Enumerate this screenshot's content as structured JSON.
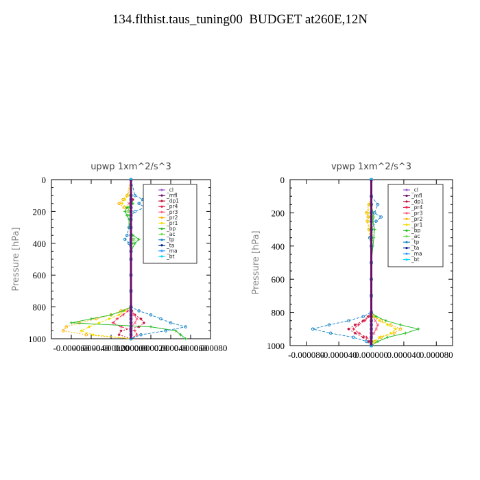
{
  "title": "134.flthist.taus_tuning00  BUDGET at260E,12N",
  "chart_data": [
    {
      "type": "line",
      "title": "upwp   1xm^2/s^3",
      "ylabel": "Pressure [hPa]",
      "xlabel": "",
      "xlim": [
        -8e-05,
        8e-05
      ],
      "ylim": [
        1000,
        0
      ],
      "xticks": [
        "-0.000060",
        "-0.000040",
        "-0.000020",
        "0.000000",
        "0.000020",
        "0.000040",
        "0.000060",
        "0.000080"
      ],
      "yticks": [
        "0",
        "200",
        "400",
        "600",
        "800",
        "1000"
      ],
      "legend_position": "top-right",
      "y": [
        0,
        100,
        125,
        150,
        175,
        200,
        225,
        250,
        300,
        350,
        375,
        400,
        450,
        500,
        600,
        700,
        800,
        825,
        850,
        875,
        900,
        925,
        950,
        975,
        1000
      ],
      "series": [
        {
          "name": "_cl",
          "color": "#9b59d0",
          "values": [
            0,
            0,
            0,
            0,
            0,
            0,
            0,
            0,
            0,
            0,
            0,
            0,
            0,
            0,
            0,
            0,
            0,
            0,
            0,
            0,
            0,
            0,
            0,
            0,
            0
          ]
        },
        {
          "name": "_mfl",
          "color": "#6a0d6a",
          "values": [
            0,
            0,
            0,
            0,
            0,
            0,
            0,
            0,
            0,
            0,
            0,
            0,
            0,
            0,
            0,
            0,
            0,
            0,
            0,
            0,
            0,
            0,
            0,
            0,
            0
          ]
        },
        {
          "name": "_dp1",
          "color": "#c0143c",
          "values": [
            0,
            0,
            2e-06,
            1e-06,
            0,
            0,
            0,
            0,
            0,
            0,
            0,
            0,
            0,
            0,
            0,
            0,
            0,
            1e-06,
            4e-06,
            1e-05,
            1.3e-05,
            8e-06,
            -1e-05,
            -1.2e-05,
            0
          ]
        },
        {
          "name": "_pr4",
          "color": "#e8204a",
          "values": [
            0,
            0,
            0,
            0,
            0,
            0,
            0,
            0,
            0,
            0,
            0,
            0,
            0,
            0,
            0,
            0,
            0,
            -3e-06,
            -8e-06,
            -1.4e-05,
            -1.8e-05,
            -1e-05,
            4e-06,
            6e-06,
            0
          ]
        },
        {
          "name": "_pr3",
          "color": "#ff5a78",
          "values": [
            0,
            0,
            0,
            -2e-06,
            0,
            0,
            0,
            0,
            0,
            0,
            0,
            0,
            0,
            0,
            0,
            0,
            0,
            0,
            3e-06,
            6e-06,
            4e-06,
            0,
            0,
            0,
            0
          ]
        },
        {
          "name": "_pr2",
          "color": "#ffb000",
          "values": [
            0,
            -4e-06,
            -8e-06,
            -1.2e-05,
            -7e-06,
            -2e-06,
            0,
            0,
            0,
            0,
            0,
            0,
            0,
            0,
            0,
            0,
            0,
            -1e-05,
            -2e-05,
            -3.5e-05,
            -5.2e-05,
            -6.5e-05,
            -6.8e-05,
            -4.5e-05,
            0
          ]
        },
        {
          "name": "_pr1",
          "color": "#f0e000",
          "values": [
            0,
            -3e-06,
            -6e-06,
            -9e-06,
            -4e-06,
            0,
            0,
            0,
            0,
            0,
            0,
            0,
            0,
            0,
            0,
            0,
            0,
            -6e-06,
            -1.2e-05,
            -2.2e-05,
            -3.2e-05,
            -4.2e-05,
            -5e-05,
            -3.8e-05,
            0
          ]
        },
        {
          "name": "_bp",
          "color": "#22bb22",
          "values": [
            0,
            0,
            0,
            2e-06,
            -4e-06,
            -6e-06,
            -4e-06,
            -2e-06,
            -2e-06,
            2e-06,
            8e-06,
            4e-06,
            0,
            0,
            0,
            0,
            0,
            -8e-06,
            -2e-05,
            -4e-05,
            -6e-05,
            2e-05,
            4.5e-05,
            5e-05,
            5.5e-05
          ]
        },
        {
          "name": "_ac",
          "color": "#66dd44",
          "values": [
            0,
            0,
            0,
            1e-06,
            -2e-06,
            -3e-06,
            -2e-06,
            0,
            0,
            1e-06,
            3e-06,
            2e-06,
            0,
            0,
            0,
            0,
            0,
            0,
            0,
            0,
            0,
            0,
            0,
            0,
            0
          ]
        },
        {
          "name": "_tp",
          "color": "#1e88c8",
          "values": [
            0,
            4e-06,
            1.2e-05,
            8e-06,
            1.4e-05,
            4e-06,
            0,
            0,
            -2e-06,
            -4e-06,
            -6e-06,
            -2e-06,
            0,
            0,
            0,
            0,
            0,
            8e-06,
            2e-05,
            3e-05,
            4e-05,
            5.5e-05,
            3.5e-05,
            1e-05,
            0
          ]
        },
        {
          "name": "_ta",
          "color": "#002288",
          "values": [
            0,
            0,
            0,
            0,
            0,
            0,
            0,
            0,
            0,
            0,
            0,
            0,
            0,
            0,
            0,
            0,
            0,
            0,
            0,
            0,
            0,
            0,
            0,
            0,
            0
          ]
        },
        {
          "name": "_ma",
          "color": "#3399ff",
          "values": [
            0,
            0,
            0,
            0,
            0,
            0,
            0,
            0,
            0,
            0,
            0,
            0,
            0,
            0,
            0,
            0,
            0,
            0,
            0,
            0,
            0,
            0,
            0,
            0,
            0
          ]
        },
        {
          "name": "_bt",
          "color": "#00d8f0",
          "values": [
            0,
            0,
            0,
            0,
            0,
            0,
            0,
            0,
            0,
            0,
            0,
            0,
            0,
            0,
            0,
            0,
            0,
            0,
            0,
            0,
            0,
            0,
            0,
            0,
            0
          ]
        }
      ]
    },
    {
      "type": "line",
      "title": "vpwp   1xm^2/s^3",
      "ylabel": "Pressure [hPa]",
      "xlabel": "",
      "xlim": [
        -0.0001,
        0.0001
      ],
      "ylim": [
        1000,
        0
      ],
      "xticks": [
        "-0.000080",
        "-0.000040",
        "0.000000",
        "0.000040",
        "0.000080"
      ],
      "yticks": [
        "0",
        "200",
        "400",
        "600",
        "800",
        "1000"
      ],
      "legend_position": "top-right",
      "y": [
        0,
        100,
        150,
        200,
        225,
        250,
        300,
        350,
        400,
        500,
        600,
        700,
        800,
        825,
        850,
        875,
        900,
        925,
        950,
        975,
        1000
      ],
      "series": [
        {
          "name": "_cl",
          "color": "#9b59d0",
          "values": [
            0,
            0,
            0,
            0,
            0,
            0,
            0,
            0,
            0,
            0,
            0,
            0,
            0,
            0,
            0,
            0,
            0,
            0,
            0,
            0,
            0
          ]
        },
        {
          "name": "_mfl",
          "color": "#6a0d6a",
          "values": [
            0,
            0,
            0,
            0,
            0,
            0,
            0,
            0,
            0,
            0,
            0,
            0,
            0,
            0,
            0,
            0,
            0,
            0,
            0,
            0,
            0
          ]
        },
        {
          "name": "_dp1",
          "color": "#c0143c",
          "values": [
            0,
            0,
            0,
            0,
            0,
            0,
            0,
            0,
            0,
            0,
            0,
            0,
            0,
            -4e-06,
            -1e-05,
            -2e-05,
            -2.8e-05,
            -2e-05,
            -1e-05,
            -3e-06,
            0
          ]
        },
        {
          "name": "_pr4",
          "color": "#e8204a",
          "values": [
            0,
            0,
            0,
            0,
            0,
            0,
            0,
            0,
            0,
            0,
            0,
            0,
            0,
            -3e-06,
            -8e-06,
            -1.6e-05,
            -2.2e-05,
            -1.5e-05,
            -6e-06,
            0,
            0
          ]
        },
        {
          "name": "_pr3",
          "color": "#ff5a78",
          "values": [
            0,
            0,
            0,
            0,
            0,
            0,
            0,
            0,
            0,
            0,
            0,
            0,
            0,
            2e-06,
            5e-06,
            8e-06,
            6e-06,
            3e-06,
            0,
            0,
            0
          ]
        },
        {
          "name": "_pr2",
          "color": "#ffb000",
          "values": [
            0,
            0,
            -3e-06,
            -6e-06,
            -4e-06,
            -5e-06,
            -3e-06,
            -2e-06,
            0,
            0,
            0,
            0,
            0,
            4e-06,
            1.2e-05,
            2.4e-05,
            3.6e-05,
            2.8e-05,
            1.2e-05,
            4e-06,
            0
          ]
        },
        {
          "name": "_pr1",
          "color": "#f0e000",
          "values": [
            0,
            0,
            -2e-06,
            -4e-06,
            -3e-06,
            -4e-06,
            -2e-06,
            -1e-06,
            0,
            0,
            0,
            0,
            0,
            3e-06,
            1e-05,
            2e-05,
            3e-05,
            2.4e-05,
            1e-05,
            3e-06,
            0
          ]
        },
        {
          "name": "_bp",
          "color": "#22bb22",
          "values": [
            0,
            0,
            0,
            2e-06,
            3e-06,
            2e-06,
            4e-06,
            3e-06,
            2e-06,
            0,
            0,
            0,
            0,
            6e-06,
            1.8e-05,
            3.6e-05,
            5.8e-05,
            4.2e-05,
            2e-05,
            8e-06,
            0
          ]
        },
        {
          "name": "_ac",
          "color": "#66dd44",
          "values": [
            0,
            0,
            0,
            1e-06,
            2e-06,
            1e-06,
            2e-06,
            2e-06,
            1e-06,
            0,
            0,
            0,
            0,
            0,
            0,
            0,
            0,
            0,
            0,
            0,
            0
          ]
        },
        {
          "name": "_tp",
          "color": "#1e88c8",
          "values": [
            0,
            0,
            8e-06,
            4e-06,
            1.2e-05,
            6e-06,
            0,
            -2e-06,
            0,
            0,
            0,
            0,
            0,
            -1e-05,
            -2.8e-05,
            -5.2e-05,
            -7.2e-05,
            -5e-05,
            -2.2e-05,
            -6e-06,
            0
          ]
        },
        {
          "name": "_ta",
          "color": "#002288",
          "values": [
            0,
            0,
            0,
            0,
            0,
            0,
            0,
            0,
            0,
            0,
            0,
            0,
            0,
            0,
            0,
            0,
            0,
            0,
            0,
            0,
            0
          ]
        },
        {
          "name": "_ma",
          "color": "#3399ff",
          "values": [
            0,
            0,
            0,
            0,
            0,
            0,
            0,
            0,
            0,
            0,
            0,
            0,
            0,
            0,
            0,
            0,
            0,
            0,
            0,
            0,
            0
          ]
        },
        {
          "name": "_bt",
          "color": "#00d8f0",
          "values": [
            0,
            0,
            0,
            0,
            0,
            0,
            0,
            0,
            0,
            0,
            0,
            0,
            0,
            0,
            0,
            0,
            0,
            0,
            0,
            0,
            0
          ]
        }
      ]
    }
  ]
}
